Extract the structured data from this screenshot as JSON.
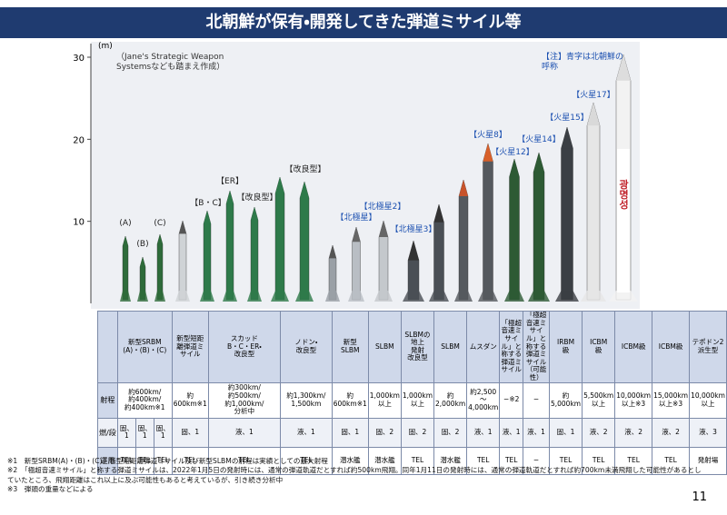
{
  "header": {
    "title": "北朝鮮が保有・開発してきた弾道ミサイル等"
  },
  "chart": {
    "unit": "(m)",
    "ylim": [
      0,
      30
    ],
    "yticks": [
      10,
      20,
      30
    ],
    "source_note": "（Jane's Strategic Weapon\nSystemsなども踏まえ作成）",
    "legend_note": "【注】青字は北朝鮮の\n呼称",
    "labels": [
      "(A)",
      "(B)",
      "(C)",
      "【B・C】",
      "【ER】",
      "【改良型】",
      "【改良型】",
      "【北極星】",
      "【北極星2】",
      "【北極星3】",
      "【火星8】",
      "【火星12】",
      "【火星14】",
      "【火星15】",
      "【火星17】"
    ],
    "korean_text": "광명성"
  },
  "table": {
    "row_headers": [
      "射程",
      "燃/段",
      "運用"
    ],
    "columns": [
      {
        "header": "新型SRBM\n(A)・(B)・(C)",
        "range": "約600km/\n約400km/\n約400km※1",
        "fuel": [
          "固、1",
          "固、1",
          "固、1"
        ],
        "operation": [
          "TEL",
          "TEL",
          "TEL"
        ]
      },
      {
        "header": "新型短距離弾道ミサイル",
        "range": "約\n600km※1",
        "fuel": [
          "固、1"
        ],
        "operation": [
          "TEL"
        ]
      },
      {
        "header": "スカッド\nB・C・ER・\n改良型",
        "range": "約300km/\n約500km/\n約1,000km/\n分析中",
        "fuel": [
          "液、1"
        ],
        "operation": [
          "TEL"
        ]
      },
      {
        "header": "ノドン・\n改良型",
        "range": "約1,300km/\n1,500km",
        "fuel": [
          "液、1"
        ],
        "operation": [
          "TEL"
        ]
      },
      {
        "header": "新型\nSLBM",
        "range": "約600km※1",
        "fuel": [
          "固、1"
        ],
        "operation": [
          "潜水艦"
        ]
      },
      {
        "header": "SLBM",
        "range": "1,000km\n以上",
        "fuel": [
          "固、2"
        ],
        "operation": [
          "潜水艦"
        ]
      },
      {
        "header": "SLBMの\n地上\n発射\n改良型",
        "range": "1,000km\n以上",
        "fuel": [
          "固、2"
        ],
        "operation": [
          "TEL"
        ]
      },
      {
        "header": "SLBM",
        "range": "約2,000km",
        "fuel": [
          "固、2"
        ],
        "operation": [
          "潜水艦"
        ]
      },
      {
        "header": "ムスダン",
        "range": "約2,500\n〜\n4,000km",
        "fuel": [
          "液、1"
        ],
        "operation": [
          "TEL"
        ]
      },
      {
        "header": "「極超音速ミサイル」と称する弾道ミサイル",
        "range": "−※2",
        "fuel": [
          "液、1"
        ],
        "operation": [
          "TEL"
        ]
      },
      {
        "header": "「極超音速ミサイル」と称する弾道ミサイル（可能性）",
        "range": "−",
        "fuel": [
          "液、1"
        ],
        "operation": [
          "−"
        ]
      },
      {
        "header": "IRBM\n級",
        "range": "約5,000km",
        "fuel": [
          "固、1"
        ],
        "operation": [
          "TEL"
        ]
      },
      {
        "header": "ICBM\n級",
        "range": "5,500km\n以上",
        "fuel": [
          "液、2"
        ],
        "operation": [
          "TEL"
        ]
      },
      {
        "header": "ICBM級",
        "range": "10,000km\n以上※3",
        "fuel": [
          "液、2"
        ],
        "operation": [
          "TEL"
        ]
      },
      {
        "header": "ICBM級",
        "range": "15,000km\n以上※3",
        "fuel": [
          "液、2"
        ],
        "operation": [
          "TEL"
        ]
      },
      {
        "header": "テポドン2\n派生型",
        "range": "10,000km\n以上",
        "fuel": [
          "液、3"
        ],
        "operation": [
          "発射場"
        ]
      }
    ]
  },
  "notes": [
    "※1　新型SRBM(A)・(B)・(C)、新型短距離弾道ミサイル及び新型SLBMの射程は実績としての最大射程",
    "※2　「極超音速ミサイル」と称する弾道ミサイルは、2022年1月5日の発射時には、通常の弾道軌道だとすれば約500km飛翔。同年1月11日の発射時には、通常の弾道軌道だとすれば約700km未満飛翔した可能性があるとしていたところ、飛翔距離はこれ以上に及ぶ可能性もあると考えているが、引き続き分析中",
    "※3　弾頭の重量などによる"
  ],
  "page_number": "11"
}
